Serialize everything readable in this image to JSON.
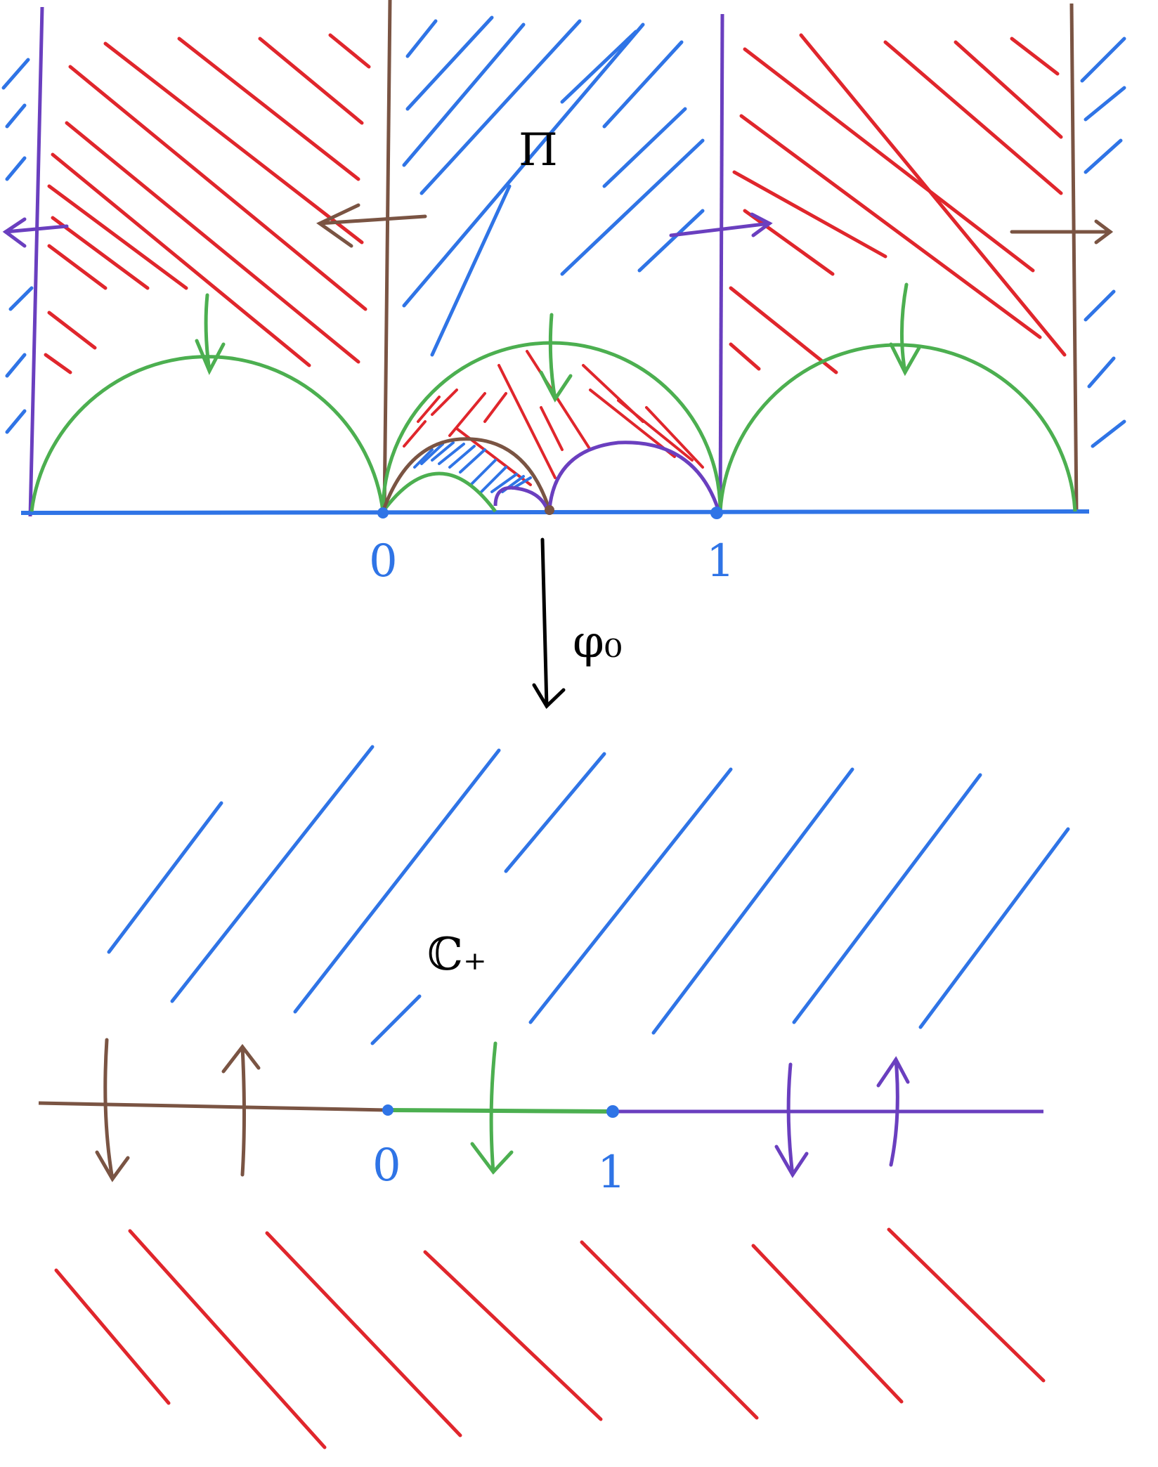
{
  "upper_panel": {
    "region_label": "Π",
    "point_zero": "0",
    "point_one": "1"
  },
  "map": {
    "label": "φ₀"
  },
  "lower_panel": {
    "region_label": "ℂ₊",
    "point_zero": "0",
    "point_one": "1"
  },
  "colors": {
    "blue": "#2f74e6",
    "red": "#e0262c",
    "green": "#4caf50",
    "brown": "#7a5443",
    "purple": "#6a3fbf",
    "black": "#000000"
  }
}
